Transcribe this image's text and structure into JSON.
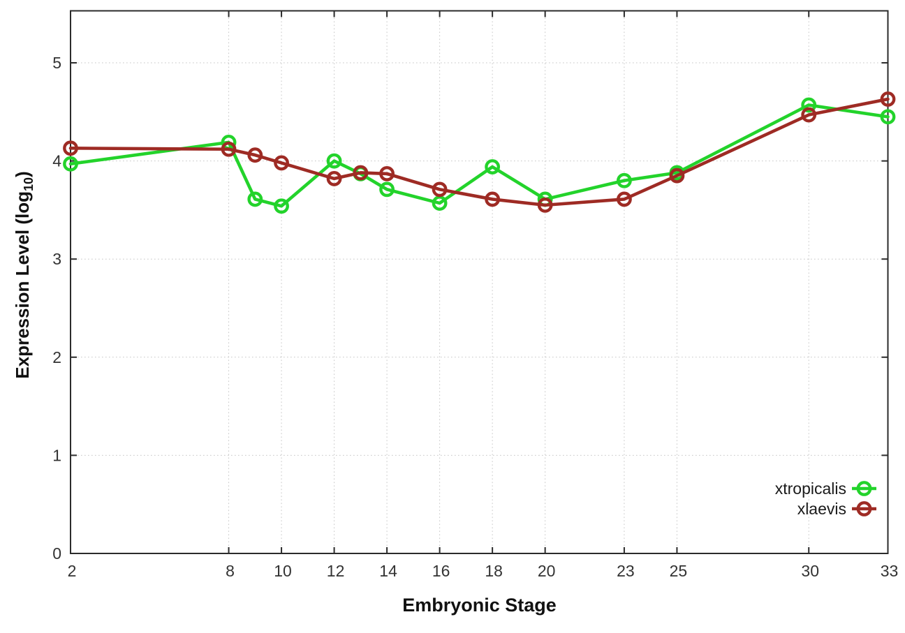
{
  "figure": {
    "background": "#ffffff",
    "border_color": "#2b2b2b",
    "grid_color": "#c6c6c6",
    "tick_label_color": "#333333",
    "axis_title_color": "#111111",
    "legend_text_color": "#1a1a1a"
  },
  "chart_data": {
    "type": "line",
    "title": "",
    "xlabel": "Embryonic Stage",
    "ylabel": "Expression Level (log10)",
    "ylabel_parts": {
      "prefix": "Expression Level (log",
      "sub": "10",
      "suffix": ")"
    },
    "xlim": [
      2,
      33
    ],
    "ylim": [
      0,
      5.53
    ],
    "x_ticks": [
      2,
      8,
      10,
      12,
      14,
      16,
      18,
      20,
      23,
      25,
      30,
      33
    ],
    "y_ticks": [
      0,
      1,
      2,
      3,
      4,
      5
    ],
    "grid": "dotted",
    "legend": {
      "position": "inside-bottom-right",
      "entries": [
        "xtropicalis",
        "xlaevis"
      ]
    },
    "x": [
      2,
      8,
      9,
      10,
      12,
      13,
      14,
      16,
      18,
      20,
      23,
      25,
      30,
      33
    ],
    "series": [
      {
        "name": "xtropicalis",
        "color": "#23d32b",
        "marker": "open-circle",
        "values": [
          3.97,
          4.19,
          3.61,
          3.54,
          4.0,
          3.87,
          3.71,
          3.57,
          3.94,
          3.61,
          3.8,
          3.88,
          4.57,
          4.45
        ]
      },
      {
        "name": "xlaevis",
        "color": "#9e2b24",
        "marker": "open-circle",
        "values": [
          4.13,
          4.12,
          4.06,
          3.98,
          3.82,
          3.88,
          3.87,
          3.71,
          3.61,
          3.55,
          3.61,
          3.85,
          4.47,
          4.63
        ]
      }
    ]
  }
}
